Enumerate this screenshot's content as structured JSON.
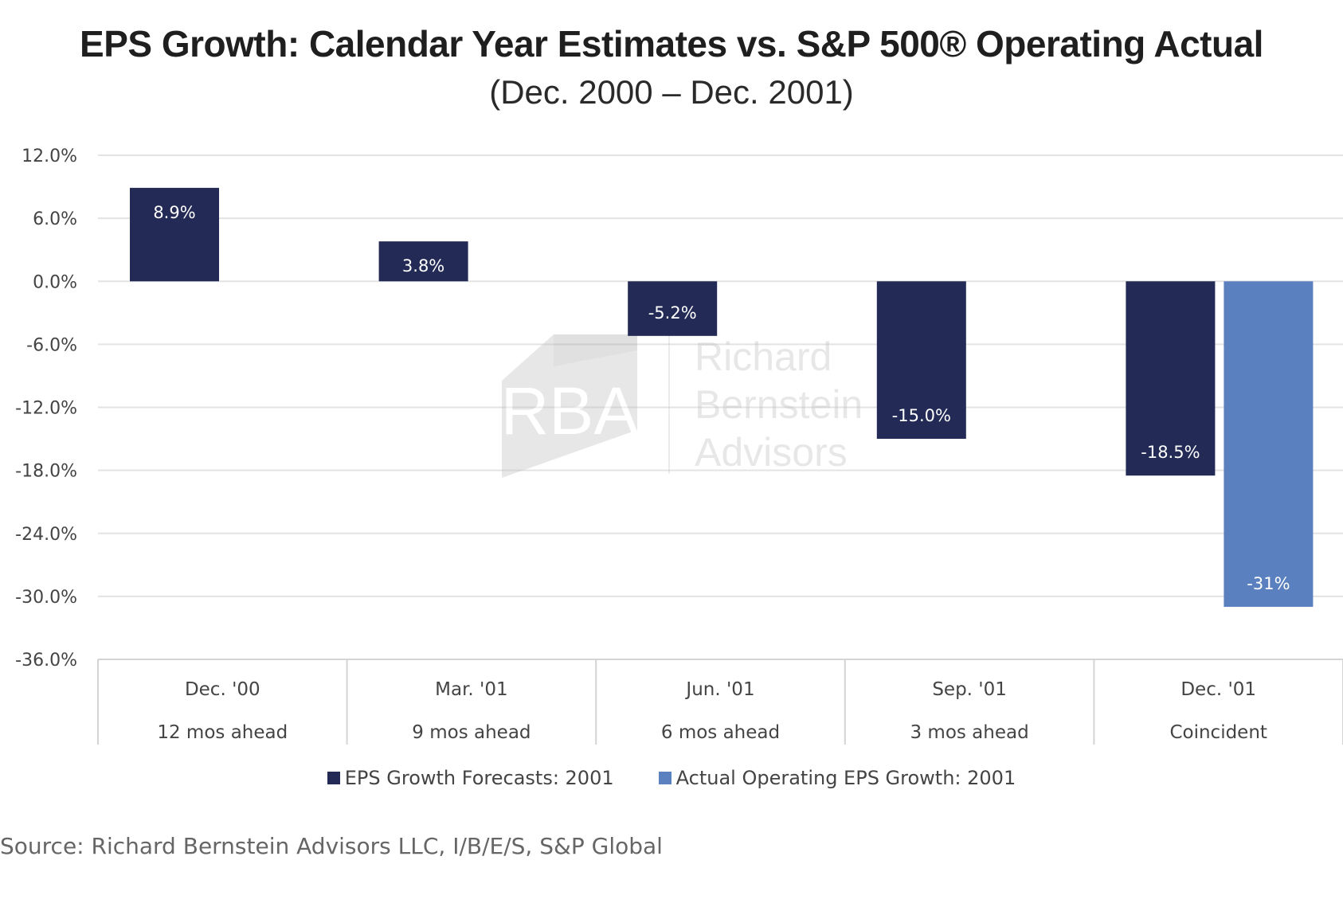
{
  "title": "EPS Growth: Calendar Year Estimates vs. S&P 500® Operating Actual",
  "subtitle": "(Dec. 2000 – Dec. 2001)",
  "source": "Source: Richard Bernstein Advisors LLC, I/B/E/S, S&P Global",
  "watermark": {
    "logo_text": "RBA",
    "name_lines": [
      "Richard",
      "Bernstein",
      "Advisors"
    ]
  },
  "colors": {
    "forecast": "#222a55",
    "actual": "#5a80bf",
    "grid": "#e3e3e3",
    "axis_text": "#444444"
  },
  "chart_data": {
    "type": "bar",
    "categories": [
      "Dec. '00",
      "Mar. '01",
      "Jun. '01",
      "Sep. '01",
      "Dec. '01"
    ],
    "category_sublabels": [
      "12 mos ahead",
      "9 mos ahead",
      "6 mos ahead",
      "3 mos ahead",
      "Coincident"
    ],
    "series": [
      {
        "name": "EPS Growth Forecasts: 2001",
        "values": [
          8.9,
          3.8,
          -5.2,
          -15.0,
          -18.5
        ],
        "labels": [
          "8.9%",
          "3.8%",
          "-5.2%",
          "-15.0%",
          "-18.5%"
        ]
      },
      {
        "name": "Actual Operating EPS Growth: 2001",
        "values": [
          null,
          null,
          null,
          null,
          -31
        ],
        "labels": [
          null,
          null,
          null,
          null,
          "-31%"
        ]
      }
    ],
    "ylim": [
      -36,
      12
    ],
    "yticks": [
      12,
      6,
      0,
      -6,
      -12,
      -18,
      -24,
      -30,
      -36
    ],
    "ytick_labels": [
      "12.0%",
      "6.0%",
      "0.0%",
      "-6.0%",
      "-12.0%",
      "-18.0%",
      "-24.0%",
      "-30.0%",
      "-36.0%"
    ],
    "grid": true,
    "legend_position": "bottom"
  }
}
